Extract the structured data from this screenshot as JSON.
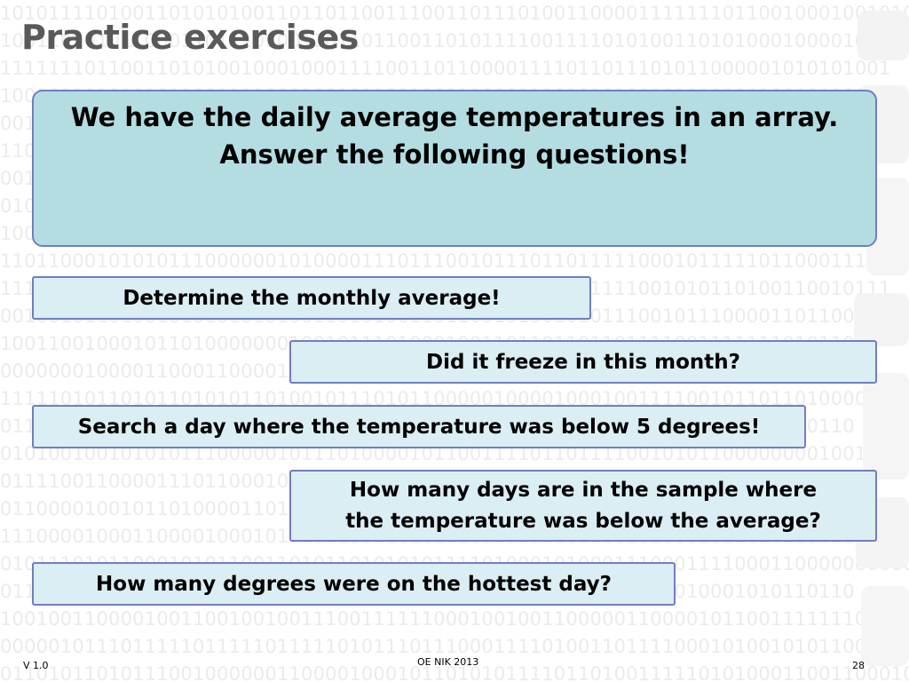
{
  "slide": {
    "title": "Practice exercises",
    "intro_line1": "We have the daily average temperatures in an array.",
    "intro_line2": "Answer the following questions!",
    "questions": [
      "Determine the monthly average!",
      "Did it freeze in this month?",
      "Search a day where the temperature was below 5 degrees!",
      "How many days are in the sample where",
      "the temperature was below the average?",
      "How many degrees were on the hottest day?"
    ]
  },
  "footer": {
    "version": "V 1.0",
    "center": "OE NIK 2013",
    "page": "28"
  },
  "background": {
    "binary_rows": [
      "10101111010011010101001101101100111001101110100110000111111101100100010010100",
      "10011010101100011011101001101101100110101111001111010100110101000100001000000000100",
      "11111110110011010100100010001111001101100001111011011101011000001010101001",
      "10010110101010110011110001001011001000110001110101010010101010110010110010",
      "00111011001110110000011011010101000101001111101011010100100010010101001",
      "11010110111010111001101100000111000011010100011110010101101011000111101",
      "00101010000101000110100100000101100011010111110010011001111010110010110",
      "01011101011110101100111010101101110010110111100010100101011000100101001",
      "10011001010010100011011101001101111111110100011001101000110101011110011",
      "11011000101010111000000101000011101110010111011011111000101111101100011111",
      "11100101010000101101001010110111100101011111000101111001010110100110010111",
      "00100101101001010101010100110101001101100101001010111001011100001101100",
      "10011001000101101000000010010111010001001101101101101111001111111010110",
      "00000001000011000110000100110101011010110011111001101111101100110001110",
      "11111010110101101010110100101110101100000100001000100111100101101101000011",
      "01101110100010101100110101000101101001010101100111110011110100110110110",
      "01010010010101011100000101110100001011001111011011110010101100000000100100",
      "01111001100001110110001010100111001101000100110011000110011100101001101",
      "01100001001011010000110101101111001010100101100101010110000010101011001",
      "11100001000110000100010101011001101011100101011001001010001011010110011",
      "01011101011000101011001101011010101011110100010100011100011110001100000000000",
      "01110100101001011100100011011101011001101001010110011010010001010110110",
      "10010011000010011001001001110011111100010010011000001100001011001111111010",
      "00000101110111110111110111110101110111000111101001101111000101001010110011101",
      "01101011010111001000000110000100010110101011110110100111110101000110011000101"
    ]
  }
}
